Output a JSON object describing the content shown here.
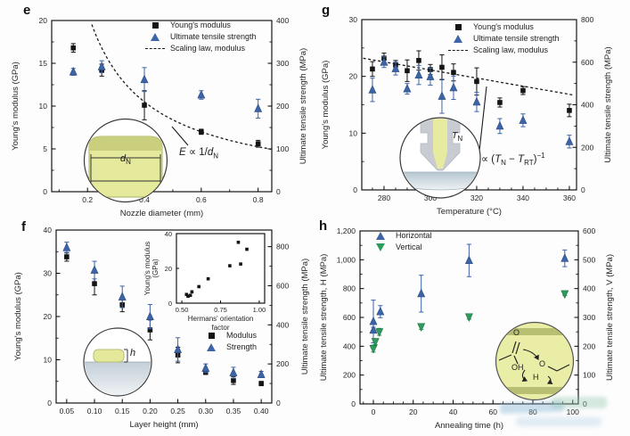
{
  "colors": {
    "blue": "#3d64a6",
    "blue_edge": "#2a4a80",
    "green": "#2f9a5d",
    "green_edge": "#1e6e41",
    "black": "#141414",
    "dash_line": "#1a1a1a",
    "inset_yellow": "#e4e99c",
    "inset_olive": "#c2c878",
    "nozzle_gray": "#c8ccd2",
    "substrate_gray": "#b9c9d3"
  },
  "chart_data": [
    {
      "panel_letter": "e",
      "type": "scatter",
      "x_axis": {
        "label": "Nozzle diameter (mm)",
        "min": 0.074,
        "max": 0.848,
        "ticks": [
          0.2,
          0.4,
          0.6,
          0.8
        ],
        "tick_labels": [
          "0.2",
          "0.4",
          "0.6",
          "0.8"
        ],
        "minor_step": 0.1
      },
      "left_axis": {
        "label": "Young's modulus (GPa)",
        "min": 0,
        "max": 20,
        "ticks": [
          0,
          5,
          10,
          15,
          20
        ],
        "tick_labels": [
          "0",
          "5",
          "10",
          "15",
          "20"
        ],
        "minor_step": 2.5
      },
      "right_axis": {
        "label": "Ultimate tensile strength (MPa)",
        "min": 0,
        "max": 400,
        "ticks": [
          0,
          100,
          200,
          300,
          400
        ],
        "tick_labels": [
          "0",
          "100",
          "200",
          "300",
          "400"
        ],
        "minor_step": 50
      },
      "series": [
        {
          "name": "Young's modulus",
          "axis": "left",
          "marker": "square",
          "color": "#141414",
          "points": [
            [
              0.15,
              16.8,
              0.5
            ],
            [
              0.25,
              14.2,
              0.7
            ],
            [
              0.4,
              10.1,
              1.7
            ],
            [
              0.6,
              7.0,
              0.3
            ],
            [
              0.8,
              5.6,
              0.4
            ]
          ]
        },
        {
          "name": "Ultimate tensile strength",
          "axis": "right",
          "marker": "triangle-up",
          "color": "#3d64a6",
          "edge": "#2a4a80",
          "points": [
            [
              0.15,
              280,
              8
            ],
            [
              0.25,
              292,
              14
            ],
            [
              0.4,
              262,
              28
            ],
            [
              0.6,
              226,
              10
            ],
            [
              0.8,
              194,
              22
            ]
          ]
        }
      ],
      "curve": {
        "name": "Scaling law, modulus",
        "kind": "inverse",
        "k": 4.2,
        "x_from": 0.215,
        "x_to": 0.845
      },
      "legend": [
        {
          "marker": "square",
          "label": "Young's modulus"
        },
        {
          "marker": "triangle-up",
          "label": "Ultimate tensile strength"
        },
        {
          "marker": "dash",
          "label": "Scaling law, modulus"
        }
      ],
      "annotation": {
        "segments": [
          {
            "t": "E",
            "s": "i"
          },
          {
            "t": " ∝ 1/",
            "s": ""
          },
          {
            "t": "d",
            "s": "i"
          },
          {
            "t": "N",
            "s": "sub"
          }
        ]
      },
      "inset_label": {
        "segments": [
          {
            "t": "d",
            "s": "i"
          },
          {
            "t": "N",
            "s": "sub"
          }
        ]
      }
    },
    {
      "panel_letter": "g",
      "type": "scatter",
      "x_axis": {
        "label": "Temperature (°C)",
        "min": 270.4,
        "max": 363.1,
        "ticks": [
          280,
          300,
          320,
          340,
          360
        ],
        "tick_labels": [
          "280",
          "300",
          "320",
          "340",
          "360"
        ],
        "minor_step": 5
      },
      "left_axis": {
        "label": "Young's modulus (GPa)",
        "min": 0,
        "max": 30,
        "ticks": [
          0,
          10,
          20,
          30
        ],
        "tick_labels": [
          "0",
          "10",
          "20",
          "30"
        ],
        "minor_step": 5
      },
      "right_axis": {
        "label": "Ultimate tensile strength (MPa)",
        "min": 0,
        "max": 800,
        "ticks": [
          0,
          200,
          400,
          600,
          800
        ],
        "tick_labels": [
          "0",
          "200",
          "400",
          "600",
          "800"
        ],
        "minor_step": 100
      },
      "series": [
        {
          "name": "Young's modulus",
          "axis": "left",
          "marker": "square",
          "color": "#141414",
          "points": [
            [
              275,
              21.3,
              1.3
            ],
            [
              280,
              23.2,
              0.9
            ],
            [
              285,
              22.0,
              0.8
            ],
            [
              290,
              21.0,
              1.9
            ],
            [
              295,
              22.8,
              1.7
            ],
            [
              300,
              21.2,
              0.9
            ],
            [
              305,
              21.6,
              2.2
            ],
            [
              310,
              20.7,
              1.5
            ],
            [
              320,
              19.1,
              2.4
            ],
            [
              330,
              15.4,
              0.8
            ],
            [
              340,
              17.5,
              0.7
            ],
            [
              360,
              14.0,
              1.1
            ]
          ]
        },
        {
          "name": "Ultimate tensile strength",
          "axis": "right",
          "marker": "triangle-up",
          "color": "#3d64a6",
          "edge": "#2a4a80",
          "points": [
            [
              275,
              470,
              55
            ],
            [
              280,
              600,
              25
            ],
            [
              285,
              570,
              30
            ],
            [
              290,
              475,
              25
            ],
            [
              295,
              540,
              45
            ],
            [
              300,
              532,
              40
            ],
            [
              305,
              440,
              80
            ],
            [
              310,
              480,
              55
            ],
            [
              320,
              413,
              45
            ],
            [
              330,
              300,
              35
            ],
            [
              340,
              327,
              30
            ],
            [
              360,
              227,
              30
            ]
          ]
        }
      ],
      "curve": {
        "name": "Scaling law, modulus",
        "kind": "line",
        "x_from": 271,
        "x_to": 362,
        "y_from": 23.2,
        "y_to": 16.7
      },
      "legend": [
        {
          "marker": "square",
          "label": "Young's modulus"
        },
        {
          "marker": "triangle-up",
          "label": "Ultimate tensile strength"
        },
        {
          "marker": "dash",
          "label": "Scaling law, modulus"
        }
      ],
      "annotation": {
        "segments": [
          {
            "t": "E",
            "s": "i"
          },
          {
            "t": " ∝ (",
            "s": ""
          },
          {
            "t": "T",
            "s": "i"
          },
          {
            "t": "N",
            "s": "sub"
          },
          {
            "t": " − ",
            "s": ""
          },
          {
            "t": "T",
            "s": "i"
          },
          {
            "t": "RT",
            "s": "sub"
          },
          {
            "t": ")",
            "s": ""
          },
          {
            "t": "−1",
            "s": "sup"
          }
        ]
      },
      "inset_label": {
        "segments": [
          {
            "t": "T",
            "s": "i"
          },
          {
            "t": "N",
            "s": "sub"
          }
        ]
      }
    },
    {
      "panel_letter": "f",
      "type": "scatter",
      "x_axis": {
        "label": "Layer height (mm)",
        "min": 0.031,
        "max": 0.419,
        "ticks": [
          0.05,
          0.1,
          0.15,
          0.2,
          0.25,
          0.3,
          0.35,
          0.4
        ],
        "tick_labels": [
          "0.05",
          "0.10",
          "0.15",
          "0.20",
          "0.25",
          "0.30",
          "0.35",
          "0.40"
        ]
      },
      "left_axis": {
        "label": "Young's modulus (GPa)",
        "min": 0,
        "max": 40,
        "ticks": [
          0,
          10,
          20,
          30,
          40
        ],
        "tick_labels": [
          "0",
          "10",
          "20",
          "30",
          "40"
        ],
        "minor_step": 5
      },
      "right_axis": {
        "label": "Ultimate tensile strength (MPa)",
        "min": 0,
        "max": 885,
        "ticks": [
          0,
          200,
          400,
          600,
          800
        ],
        "tick_labels": [
          "0",
          "200",
          "400",
          "600",
          "800"
        ],
        "minor_step": 100
      },
      "series": [
        {
          "name": "Modulus",
          "axis": "left",
          "marker": "square",
          "color": "#141414",
          "points": [
            [
              0.05,
              33.8,
              1.0
            ],
            [
              0.1,
              27.6,
              2.6
            ],
            [
              0.15,
              22.7,
              1.6
            ],
            [
              0.2,
              16.9,
              2.3
            ],
            [
              0.25,
              11.1,
              1.8
            ],
            [
              0.3,
              7.2,
              0.6
            ],
            [
              0.35,
              5.2,
              0.9
            ],
            [
              0.4,
              4.5,
              0.5
            ]
          ]
        },
        {
          "name": "Strength",
          "axis": "right",
          "marker": "triangle-up",
          "color": "#3d64a6",
          "edge": "#2a4a80",
          "points": [
            [
              0.05,
              795,
              28
            ],
            [
              0.1,
              680,
              45
            ],
            [
              0.15,
              543,
              55
            ],
            [
              0.2,
              442,
              62
            ],
            [
              0.25,
              274,
              60
            ],
            [
              0.3,
              178,
              22
            ],
            [
              0.35,
              155,
              28
            ],
            [
              0.4,
              146,
              16
            ]
          ]
        }
      ],
      "legend": [
        {
          "marker": "square",
          "label": "Modulus"
        },
        {
          "marker": "triangle-up",
          "label": "Strength"
        }
      ],
      "inset_label": {
        "segments": [
          {
            "t": "h",
            "s": "i"
          }
        ]
      },
      "inset_chart": {
        "x_axis": {
          "label_lines": [
            "Hermans' orientation",
            "factor"
          ],
          "min": 0.465,
          "max": 1.035,
          "ticks": [
            0.5,
            0.75,
            1.0
          ],
          "tick_labels": [
            "0.50",
            "0.75",
            "1.00"
          ]
        },
        "left_axis": {
          "label_lines": [
            "Young's modulus",
            "(GPa)"
          ],
          "min": 0,
          "max": 40,
          "ticks": [
            0,
            20,
            40
          ],
          "tick_labels": [
            "0",
            "20",
            "40"
          ]
        },
        "series": [
          {
            "name": "Young's modulus vs Hermans factor",
            "axis": "left",
            "marker": "square",
            "color": "#141414",
            "size": 3.6,
            "points": [
              [
                0.53,
                5
              ],
              [
                0.54,
                4
              ],
              [
                0.555,
                4.5
              ],
              [
                0.565,
                6.5
              ],
              [
                0.61,
                9.5
              ],
              [
                0.67,
                14
              ],
              [
                0.81,
                21.5
              ],
              [
                0.865,
                35
              ],
              [
                0.88,
                22.5
              ],
              [
                0.92,
                31
              ]
            ]
          }
        ]
      }
    },
    {
      "panel_letter": "h",
      "type": "scatter",
      "x_axis": {
        "label": "Annealing time (h)",
        "min": -6.7,
        "max": 102.8,
        "ticks": [
          0,
          20,
          40,
          60,
          80,
          100
        ],
        "tick_labels": [
          "0",
          "20",
          "40",
          "60",
          "80",
          "100"
        ],
        "minor_step": 5
      },
      "left_axis": {
        "label": "Ultimate tensile strength, H (MPa)",
        "min": 0,
        "max": 1200,
        "ticks": [
          0,
          200,
          400,
          600,
          800,
          1000,
          1200
        ],
        "tick_labels": [
          "0",
          "200",
          "400",
          "600",
          "800",
          "1,000",
          "1,200"
        ],
        "minor_step": 100
      },
      "right_axis": {
        "label": "Ultimate tensile strength, V (MPa)",
        "min": 0,
        "max": 600,
        "ticks": [
          0,
          100,
          200,
          300,
          400,
          500,
          600
        ],
        "tick_labels": [
          "0",
          "100",
          "200",
          "300",
          "400",
          "500",
          "600"
        ],
        "minor_step": 50
      },
      "series": [
        {
          "name": "Horizontal",
          "axis": "left",
          "marker": "triangle-up",
          "color": "#3d64a6",
          "edge": "#2a4a80",
          "points": [
            [
              0,
              512,
              20
            ],
            [
              0,
              572,
              148
            ],
            [
              3.5,
              640,
              42
            ],
            [
              24,
              765,
              128
            ],
            [
              48,
              995,
              112
            ],
            [
              96,
              1010,
              58
            ]
          ]
        },
        {
          "name": "Vertical",
          "axis": "right",
          "marker": "triangle-down",
          "color": "#2f9a5d",
          "edge": "#1e6e41",
          "points": [
            [
              0,
              192,
              12
            ],
            [
              1,
              216,
              10
            ],
            [
              3,
              250,
              12
            ],
            [
              24,
              268,
              10
            ],
            [
              48,
              302,
              8
            ],
            [
              96,
              382,
              6
            ]
          ]
        }
      ],
      "legend": [
        {
          "marker": "triangle-up",
          "label": "Horizontal"
        },
        {
          "marker": "triangle-down",
          "label": "Vertical"
        }
      ],
      "inset_atoms": {
        "o_top": "O",
        "oh": "OH",
        "o_ester": "O",
        "h": "H"
      }
    }
  ]
}
